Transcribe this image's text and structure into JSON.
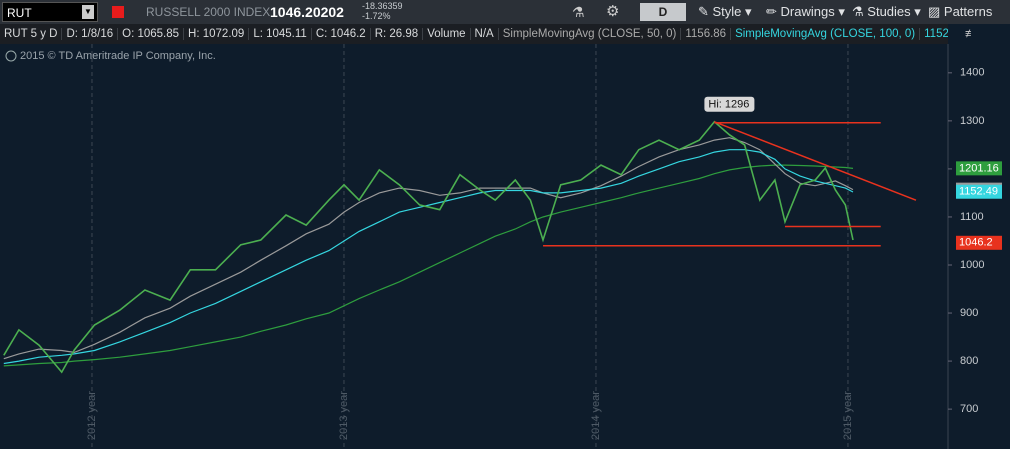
{
  "toolbar": {
    "symbol": "RUT",
    "description": "RUSSELL 2000 INDEX",
    "last": "1046.20202",
    "change": "-18.36359",
    "change_pct": "-1.72%",
    "aggregation": "D",
    "buttons": [
      "Style",
      "Drawings",
      "Studies",
      "Patterns"
    ]
  },
  "info_bar": {
    "items": [
      "RUT 5 y D",
      "D: 1/8/16",
      "O: 1065.85",
      "H: 1072.09",
      "L: 1045.11",
      "C: 1046.2",
      "R: 26.98",
      "Volume",
      "N/A"
    ],
    "more": "..."
  },
  "copyright": "2015 © TD Ameritrade IP Company, Inc.",
  "chart_data": {
    "type": "line",
    "x": [
      2011.65,
      2011.71,
      2011.79,
      2011.88,
      2011.93,
      2012.01,
      2012.11,
      2012.21,
      2012.31,
      2012.39,
      2012.49,
      2012.59,
      2012.67,
      2012.77,
      2012.85,
      2012.94,
      2013.0,
      2013.06,
      2013.14,
      2013.22,
      2013.3,
      2013.38,
      2013.46,
      2013.54,
      2013.6,
      2013.68,
      2013.74,
      2013.79,
      2013.86,
      2013.94,
      2014.02,
      2014.1,
      2014.17,
      2014.25,
      2014.33,
      2014.41,
      2014.47,
      2014.53,
      2014.59,
      2014.65,
      2014.71,
      2014.75,
      2014.81,
      2014.87,
      2014.91,
      2014.95,
      2014.99,
      2015.02
    ],
    "series": [
      {
        "color": "#2e9e3e",
        "last_value": 1201.16,
        "values": [
          790,
          792,
          795,
          797,
          800,
          803,
          808,
          815,
          822,
          830,
          840,
          850,
          862,
          875,
          888,
          900,
          915,
          930,
          948,
          965,
          985,
          1005,
          1025,
          1045,
          1060,
          1075,
          1090,
          1100,
          1110,
          1120,
          1130,
          1140,
          1150,
          1160,
          1170,
          1180,
          1190,
          1198,
          1203,
          1206,
          1208,
          1208,
          1207,
          1206,
          1205,
          1204,
          1203,
          1201
        ]
      },
      {
        "name": "SimpleMovingAvg (CLOSE, 50, 0)",
        "color": "#9a9a9a",
        "last_value": 1156.86,
        "values": [
          805,
          815,
          825,
          822,
          818,
          835,
          860,
          890,
          910,
          935,
          960,
          985,
          1010,
          1040,
          1065,
          1085,
          1110,
          1130,
          1150,
          1160,
          1155,
          1145,
          1150,
          1160,
          1160,
          1160,
          1160,
          1150,
          1140,
          1150,
          1165,
          1185,
          1205,
          1225,
          1240,
          1250,
          1260,
          1265,
          1255,
          1240,
          1210,
          1190,
          1170,
          1165,
          1170,
          1175,
          1165,
          1157
        ]
      },
      {
        "name": "SimpleMovingAvg (CLOSE, 100, 0)",
        "color": "#35d6e0",
        "last_value": 1152.49,
        "values": [
          795,
          800,
          808,
          812,
          815,
          822,
          840,
          860,
          880,
          900,
          920,
          945,
          965,
          990,
          1010,
          1030,
          1050,
          1070,
          1090,
          1110,
          1120,
          1130,
          1140,
          1150,
          1155,
          1155,
          1155,
          1150,
          1150,
          1155,
          1160,
          1170,
          1185,
          1200,
          1215,
          1225,
          1235,
          1240,
          1240,
          1235,
          1220,
          1200,
          1185,
          1175,
          1170,
          1165,
          1160,
          1152
        ]
      },
      {
        "color": "#4caf50",
        "last_value": 1046.2,
        "values": [
          812,
          865,
          833,
          777,
          823,
          875,
          906,
          948,
          927,
          990,
          990,
          1042,
          1052,
          1104,
          1083,
          1135,
          1167,
          1135,
          1198,
          1167,
          1125,
          1115,
          1188,
          1156,
          1135,
          1177,
          1135,
          1052,
          1167,
          1177,
          1208,
          1188,
          1240,
          1260,
          1240,
          1260,
          1298,
          1271,
          1250,
          1135,
          1177,
          1090,
          1167,
          1177,
          1202,
          1156,
          1125,
          1052
        ]
      }
    ],
    "drawings": [
      {
        "x": [
          2014.47,
          2015.13
        ],
        "y": [
          1296,
          1296
        ]
      },
      {
        "x": [
          2014.75,
          2015.13
        ],
        "y": [
          1080,
          1080
        ]
      },
      {
        "x": [
          2013.79,
          2015.13
        ],
        "y": [
          1040,
          1040
        ]
      },
      {
        "x": [
          2014.47,
          2015.27
        ],
        "y": [
          1298,
          1135
        ]
      }
    ],
    "drawing_color": "#e8321e",
    "annotation": {
      "text": "Hi: 1296",
      "x": 2014.47,
      "y": 1296
    },
    "xlim": [
      2011.635,
      2015.397
    ],
    "ylim": [
      617,
      1460
    ],
    "xticks": [
      {
        "value": 2012,
        "label": "2012 year"
      },
      {
        "value": 2013,
        "label": "2013 year"
      },
      {
        "value": 2014,
        "label": "2014 year"
      },
      {
        "value": 2015,
        "label": "2015 year"
      }
    ],
    "yticks": [
      700,
      800,
      900,
      1000,
      1100,
      1200,
      1300,
      1400
    ],
    "grid": true
  }
}
